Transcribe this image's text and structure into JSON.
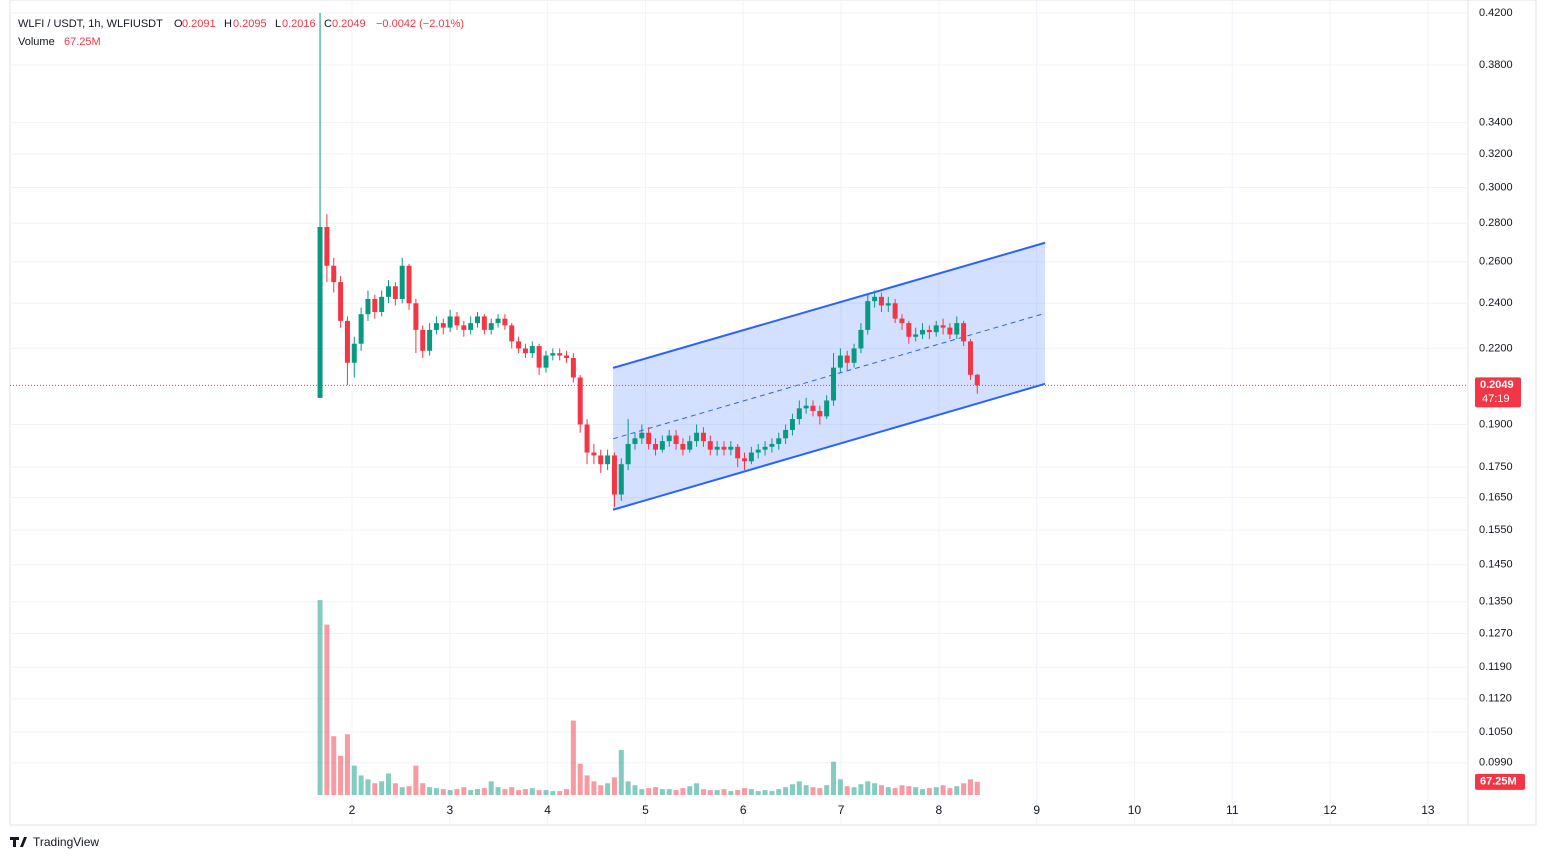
{
  "chart_data": {
    "type": "candlestick",
    "header": {
      "symbol": "WLFI / USDT, 1h, WLFIUSDT",
      "o_label": "O",
      "open": 0.2091,
      "h_label": "H",
      "high": 0.2095,
      "l_label": "L",
      "low": 0.2016,
      "c_label": "C",
      "close": 0.2049,
      "change": "−0.0042 (−2.01%)",
      "volume_title": "Volume"
    },
    "volume_label": "67.25M",
    "last_price": 0.2049,
    "countdown": "47:19",
    "footer": "TradingView",
    "log_scale": true,
    "grid": true,
    "up_color": "#089981",
    "down_color": "#f23645",
    "channel_color": "#2962ff",
    "xlim": [
      -1.497,
      13.41
    ],
    "xticks": [
      2,
      3,
      4,
      5,
      6,
      7,
      8,
      9,
      10,
      11,
      12,
      13
    ],
    "ylim": [
      0.0878,
      0.4306
    ],
    "yticks": [
      {
        "value": 0.42,
        "label": "0.4200"
      },
      {
        "value": 0.38,
        "label": "0.3800"
      },
      {
        "value": 0.34,
        "label": "0.3400"
      },
      {
        "value": 0.32,
        "label": "0.3200"
      },
      {
        "value": 0.3,
        "label": "0.3000"
      },
      {
        "value": 0.28,
        "label": "0.2800"
      },
      {
        "value": 0.26,
        "label": "0.2600"
      },
      {
        "value": 0.24,
        "label": "0.2400"
      },
      {
        "value": 0.22,
        "label": "0.2200"
      },
      {
        "value": 0.19,
        "label": "0.1900"
      },
      {
        "value": 0.175,
        "label": "0.1750"
      },
      {
        "value": 0.165,
        "label": "0.1650"
      },
      {
        "value": 0.155,
        "label": "0.1550"
      },
      {
        "value": 0.145,
        "label": "0.1450"
      },
      {
        "value": 0.135,
        "label": "0.1350"
      },
      {
        "value": 0.127,
        "label": "0.1270"
      },
      {
        "value": 0.119,
        "label": "0.1190"
      },
      {
        "value": 0.112,
        "label": "0.1120"
      },
      {
        "value": 0.105,
        "label": "0.1050"
      },
      {
        "value": 0.099,
        "label": "0.0990"
      }
    ],
    "volume_ylim": [
      0,
      1200
    ],
    "channel": {
      "upper": [
        [
          4.669,
          0.2119
        ],
        [
          9.086,
          0.2697
        ]
      ],
      "lower": [
        [
          4.669,
          0.1612
        ],
        [
          9.086,
          0.2055
        ]
      ]
    },
    "x": [
      1.673,
      1.743,
      1.813,
      1.883,
      1.953,
      2.023,
      2.093,
      2.163,
      2.233,
      2.303,
      2.373,
      2.443,
      2.513,
      2.583,
      2.653,
      2.723,
      2.793,
      2.863,
      2.933,
      3.003,
      3.073,
      3.143,
      3.213,
      3.283,
      3.353,
      3.423,
      3.493,
      3.563,
      3.633,
      3.703,
      3.773,
      3.843,
      3.913,
      3.983,
      4.053,
      4.123,
      4.193,
      4.263,
      4.333,
      4.403,
      4.473,
      4.543,
      4.613,
      4.683,
      4.753,
      4.823,
      4.893,
      4.963,
      5.033,
      5.103,
      5.173,
      5.243,
      5.313,
      5.383,
      5.453,
      5.523,
      5.593,
      5.663,
      5.733,
      5.803,
      5.873,
      5.943,
      6.013,
      6.083,
      6.153,
      6.223,
      6.293,
      6.363,
      6.433,
      6.503,
      6.573,
      6.643,
      6.713,
      6.783,
      6.853,
      6.923,
      6.993,
      7.063,
      7.133,
      7.203,
      7.273,
      7.343,
      7.413,
      7.483,
      7.553,
      7.623,
      7.693,
      7.763,
      7.833,
      7.903,
      7.973,
      8.043,
      8.113,
      8.183,
      8.253,
      8.323,
      8.393
    ],
    "open": [
      0.2,
      0.278,
      0.258,
      0.25,
      0.232,
      0.214,
      0.222,
      0.235,
      0.242,
      0.236,
      0.243,
      0.248,
      0.242,
      0.258,
      0.24,
      0.228,
      0.219,
      0.228,
      0.231,
      0.229,
      0.234,
      0.23,
      0.228,
      0.231,
      0.234,
      0.228,
      0.231,
      0.233,
      0.23,
      0.223,
      0.22,
      0.218,
      0.221,
      0.212,
      0.217,
      0.218,
      0.217,
      0.216,
      0.208,
      0.19,
      0.18,
      0.179,
      0.176,
      0.179,
      0.166,
      0.176,
      0.183,
      0.185,
      0.187,
      0.183,
      0.181,
      0.184,
      0.186,
      0.183,
      0.181,
      0.184,
      0.187,
      0.184,
      0.181,
      0.182,
      0.181,
      0.182,
      0.178,
      0.177,
      0.18,
      0.181,
      0.182,
      0.183,
      0.185,
      0.188,
      0.192,
      0.196,
      0.197,
      0.195,
      0.193,
      0.199,
      0.212,
      0.217,
      0.214,
      0.22,
      0.228,
      0.241,
      0.243,
      0.239,
      0.24,
      0.233,
      0.231,
      0.225,
      0.226,
      0.228,
      0.227,
      0.23,
      0.229,
      0.226,
      0.231,
      0.223,
      0.2091
    ],
    "high": [
      0.42,
      0.285,
      0.262,
      0.253,
      0.234,
      0.225,
      0.238,
      0.246,
      0.244,
      0.246,
      0.251,
      0.25,
      0.262,
      0.259,
      0.242,
      0.23,
      0.231,
      0.234,
      0.233,
      0.237,
      0.236,
      0.232,
      0.234,
      0.236,
      0.235,
      0.233,
      0.235,
      0.235,
      0.231,
      0.225,
      0.222,
      0.223,
      0.222,
      0.219,
      0.22,
      0.22,
      0.219,
      0.218,
      0.209,
      0.192,
      0.183,
      0.181,
      0.181,
      0.18,
      0.178,
      0.192,
      0.187,
      0.19,
      0.189,
      0.185,
      0.186,
      0.188,
      0.188,
      0.185,
      0.186,
      0.19,
      0.189,
      0.186,
      0.184,
      0.184,
      0.184,
      0.183,
      0.18,
      0.182,
      0.183,
      0.184,
      0.185,
      0.187,
      0.19,
      0.194,
      0.199,
      0.2,
      0.199,
      0.197,
      0.201,
      0.218,
      0.22,
      0.219,
      0.222,
      0.231,
      0.244,
      0.246,
      0.245,
      0.243,
      0.242,
      0.235,
      0.232,
      0.229,
      0.231,
      0.23,
      0.232,
      0.233,
      0.231,
      0.234,
      0.232,
      0.224,
      0.2095
    ],
    "low": [
      0.2,
      0.25,
      0.245,
      0.229,
      0.205,
      0.208,
      0.219,
      0.232,
      0.233,
      0.234,
      0.24,
      0.239,
      0.24,
      0.237,
      0.218,
      0.216,
      0.217,
      0.226,
      0.226,
      0.227,
      0.228,
      0.225,
      0.226,
      0.229,
      0.226,
      0.226,
      0.229,
      0.228,
      0.22,
      0.218,
      0.216,
      0.216,
      0.209,
      0.21,
      0.215,
      0.215,
      0.214,
      0.206,
      0.187,
      0.176,
      0.176,
      0.173,
      0.174,
      0.162,
      0.164,
      0.174,
      0.181,
      0.183,
      0.181,
      0.179,
      0.18,
      0.182,
      0.181,
      0.179,
      0.18,
      0.182,
      0.182,
      0.179,
      0.179,
      0.179,
      0.179,
      0.175,
      0.174,
      0.176,
      0.178,
      0.179,
      0.18,
      0.181,
      0.183,
      0.186,
      0.19,
      0.194,
      0.193,
      0.19,
      0.192,
      0.197,
      0.21,
      0.211,
      0.212,
      0.218,
      0.226,
      0.238,
      0.236,
      0.236,
      0.231,
      0.228,
      0.222,
      0.223,
      0.224,
      0.224,
      0.225,
      0.226,
      0.224,
      0.224,
      0.221,
      0.207,
      0.2016
    ],
    "close": [
      0.278,
      0.258,
      0.25,
      0.232,
      0.214,
      0.222,
      0.235,
      0.242,
      0.236,
      0.243,
      0.248,
      0.242,
      0.258,
      0.24,
      0.228,
      0.219,
      0.228,
      0.231,
      0.229,
      0.234,
      0.23,
      0.228,
      0.231,
      0.234,
      0.228,
      0.231,
      0.233,
      0.23,
      0.223,
      0.22,
      0.218,
      0.221,
      0.212,
      0.217,
      0.218,
      0.217,
      0.216,
      0.208,
      0.19,
      0.18,
      0.179,
      0.176,
      0.179,
      0.166,
      0.176,
      0.183,
      0.185,
      0.187,
      0.183,
      0.181,
      0.184,
      0.186,
      0.183,
      0.181,
      0.184,
      0.187,
      0.184,
      0.181,
      0.182,
      0.181,
      0.182,
      0.178,
      0.177,
      0.18,
      0.181,
      0.182,
      0.183,
      0.185,
      0.188,
      0.192,
      0.196,
      0.197,
      0.195,
      0.193,
      0.199,
      0.212,
      0.217,
      0.214,
      0.22,
      0.228,
      0.241,
      0.243,
      0.239,
      0.24,
      0.233,
      0.231,
      0.225,
      0.226,
      0.228,
      0.227,
      0.23,
      0.229,
      0.226,
      0.231,
      0.223,
      0.2091,
      0.2049
    ],
    "volume": [
      995,
      870,
      300,
      200,
      310,
      150,
      100,
      80,
      60,
      70,
      110,
      60,
      40,
      45,
      150,
      60,
      40,
      35,
      30,
      25,
      30,
      40,
      25,
      30,
      35,
      70,
      40,
      30,
      40,
      25,
      30,
      35,
      25,
      25,
      20,
      20,
      30,
      380,
      160,
      100,
      70,
      50,
      60,
      90,
      230,
      70,
      50,
      30,
      35,
      40,
      30,
      30,
      25,
      35,
      45,
      60,
      30,
      25,
      25,
      30,
      20,
      25,
      35,
      30,
      20,
      25,
      20,
      30,
      40,
      55,
      70,
      50,
      40,
      35,
      50,
      170,
      80,
      45,
      40,
      55,
      70,
      60,
      50,
      40,
      35,
      50,
      45,
      40,
      30,
      35,
      40,
      50,
      35,
      45,
      60,
      80,
      67.25
    ]
  }
}
